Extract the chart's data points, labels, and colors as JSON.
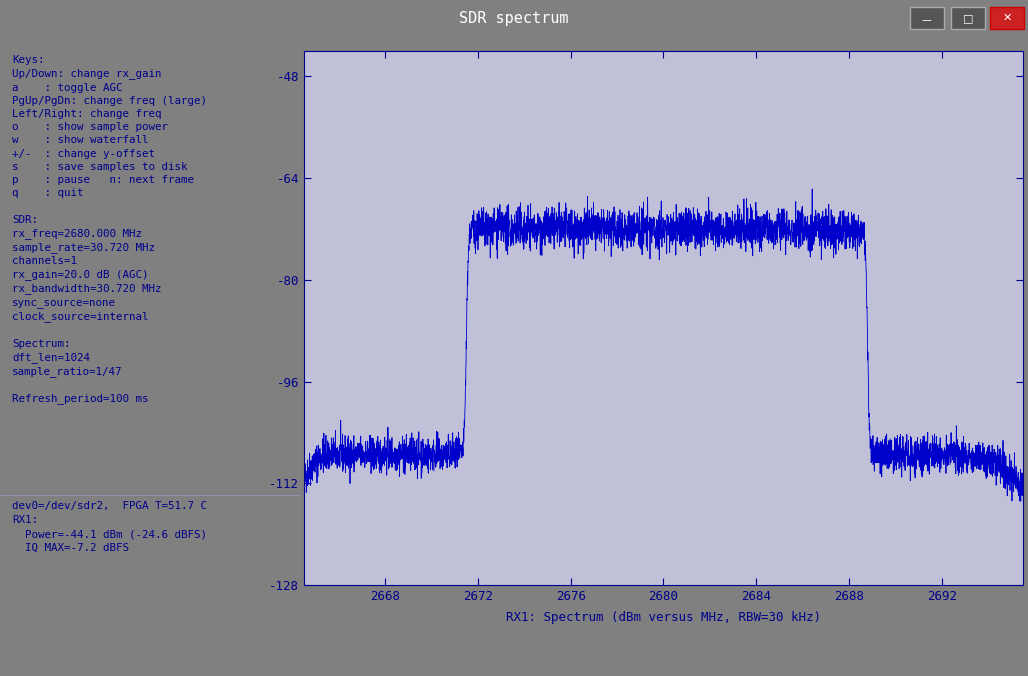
{
  "title": "SDR spectrum",
  "bg_color_titlebar": "#404040",
  "bg_color_left": "#c0c0d8",
  "bg_color_plot": "#c0c0d8",
  "bg_color_outer": "#808080",
  "text_color_left": "#00008b",
  "line_color": "#0000cd",
  "left_panel_text_lines": [
    "",
    "Keys:",
    "Up/Down: change rx_gain",
    "a    : toggle AGC",
    "PgUp/PgDn: change freq (large)",
    "Left/Right: change freq",
    "o    : show sample power",
    "w    : show waterfall",
    "+/-  : change y-offset",
    "s    : save samples to disk",
    "p    : pause   n: next frame",
    "q    : quit",
    "",
    "SDR:",
    "rx_freq=2680.000 MHz",
    "sample_rate=30.720 MHz",
    "channels=1",
    "rx_gain=20.0 dB (AGC)",
    "rx_bandwidth=30.720 MHz",
    "sync_source=none",
    "clock_source=internal",
    "",
    "Spectrum:",
    "dft_len=1024",
    "sample_ratio=1/47",
    "",
    "Refresh_period=100 ms"
  ],
  "bottom_left_text_lines": [
    "dev0=/dev/sdr2,  FPGA T=51.7 C",
    "RX1:",
    "  Power=-44.1 dBm (-24.6 dBFS)",
    "  IQ MAX=-7.2 dBFS"
  ],
  "xlabel": "RX1: Spectrum (dBm versus MHz, RBW=30 kHz)",
  "xlim": [
    2664.5,
    2695.5
  ],
  "ylim": [
    -128,
    -44
  ],
  "yticks": [
    -128,
    -112,
    -96,
    -80,
    -64,
    -48
  ],
  "xticks": [
    2668,
    2672,
    2676,
    2680,
    2684,
    2688,
    2692
  ],
  "noise_floor": -107.5,
  "signal_level": -72.0,
  "band_start": 2671.5,
  "band_end": 2688.8,
  "seed": 42
}
